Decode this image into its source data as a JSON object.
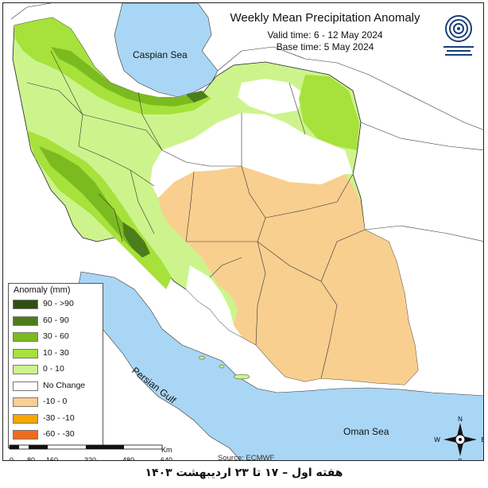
{
  "header": {
    "title": "Weekly Mean Precipitation Anomaly",
    "valid_time": "Valid time: 6 - 12 May 2024",
    "base_time": "Base time: 5 May 2024"
  },
  "map_labels": {
    "caspian_sea": "Caspian Sea",
    "persian_gulf": "Persian Gulf",
    "oman_sea": "Oman Sea"
  },
  "legend": {
    "title": "Anomaly (mm)",
    "classes": [
      {
        "label": "90 - >90",
        "color": "#2f4f0f"
      },
      {
        "label": "60 - 90",
        "color": "#4d7d1a"
      },
      {
        "label": "30 - 60",
        "color": "#7cbb1f"
      },
      {
        "label": "10 - 30",
        "color": "#a6e23b"
      },
      {
        "label": "0 - 10",
        "color": "#cdf48c"
      },
      {
        "label": "No Change",
        "color": "#ffffff"
      },
      {
        "label": "-10 - 0",
        "color": "#f9cf8f"
      },
      {
        "label": "-30 - -10",
        "color": "#f6a800"
      },
      {
        "label": "-60 - -30",
        "color": "#ef6c1a"
      }
    ]
  },
  "scale_bar": {
    "ticks": [
      "0",
      "80",
      "160",
      "320",
      "480",
      "640"
    ],
    "unit": "Km"
  },
  "source": "Source: ECMWF",
  "compass": {
    "n": "N",
    "s": "S",
    "e": "E",
    "w": "W"
  },
  "footer": "هفته اول – ۱۷ تا ۲۳ اردیبهشت ۱۴۰۳",
  "colors": {
    "water": "#a9d6f5",
    "land_outside": "#ffffff"
  }
}
